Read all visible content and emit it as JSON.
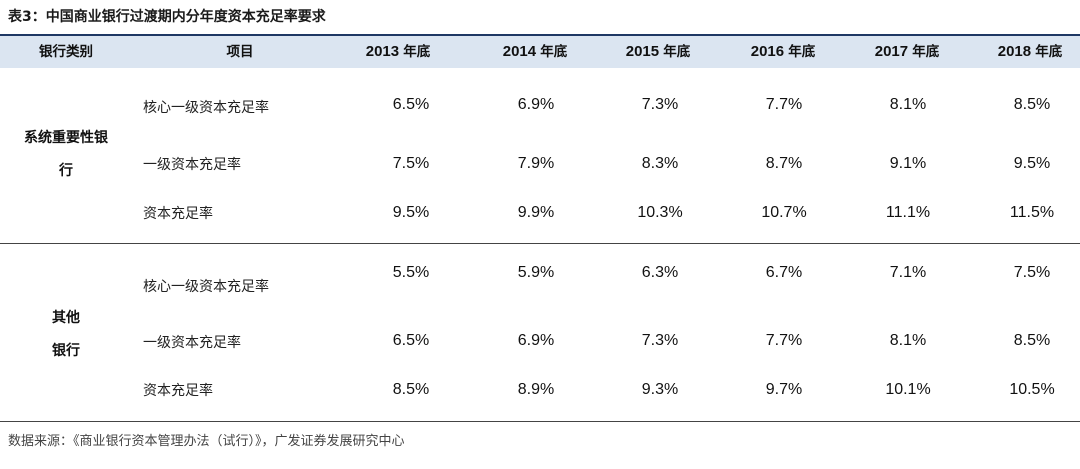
{
  "title": "表3：中国商业银行过渡期内分年度资本充足率要求",
  "header": {
    "category": "银行类别",
    "item": "项目",
    "years": [
      {
        "year": "2013",
        "suffix": "年底"
      },
      {
        "year": "2014",
        "suffix": "年底"
      },
      {
        "year": "2015",
        "suffix": "年底"
      },
      {
        "year": "2016",
        "suffix": "年底"
      },
      {
        "year": "2017",
        "suffix": "年底"
      },
      {
        "year": "2018",
        "suffix": "年底"
      }
    ]
  },
  "groups": [
    {
      "line1": "系统重要性银",
      "line2": "行",
      "rows": [
        {
          "item": "核心一级资本充足率",
          "values": [
            "6.5%",
            "6.9%",
            "7.3%",
            "7.7%",
            "8.1%",
            "8.5%"
          ]
        },
        {
          "item": "一级资本充足率",
          "values": [
            "7.5%",
            "7.9%",
            "8.3%",
            "8.7%",
            "9.1%",
            "9.5%"
          ]
        },
        {
          "item": "资本充足率",
          "values": [
            "9.5%",
            "9.9%",
            "10.3%",
            "10.7%",
            "11.1%",
            "11.5%"
          ]
        }
      ]
    },
    {
      "line1": "其他",
      "line2": "银行",
      "rows": [
        {
          "item": "核心一级资本充足率",
          "values": [
            "5.5%",
            "5.9%",
            "6.3%",
            "6.7%",
            "7.1%",
            "7.5%"
          ]
        },
        {
          "item": "一级资本充足率",
          "values": [
            "6.5%",
            "6.9%",
            "7.3%",
            "7.7%",
            "8.1%",
            "8.5%"
          ]
        },
        {
          "item": "资本充足率",
          "values": [
            "8.5%",
            "8.9%",
            "9.3%",
            "9.7%",
            "10.1%",
            "10.5%"
          ]
        }
      ]
    }
  ],
  "source": "数据来源：《商业银行资本管理办法（试行）》，广发证券发展研究中心"
}
